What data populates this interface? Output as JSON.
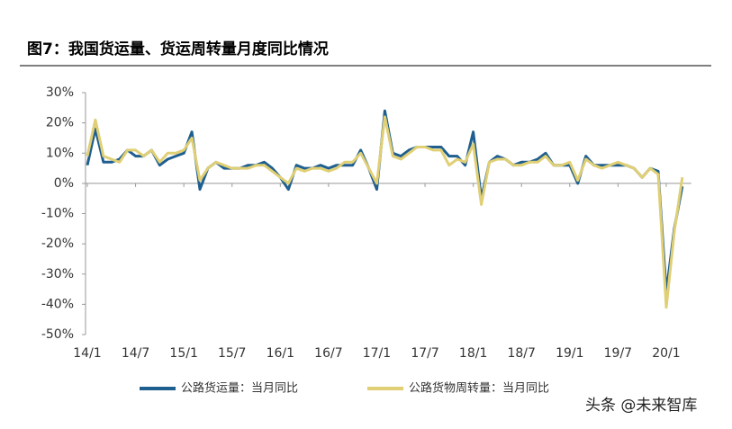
{
  "chart_data": {
    "type": "line",
    "title": "图7：我国货运量、货运周转量月度同比情况",
    "watermark": "头条 @未来智库",
    "categories": [
      "14/1",
      null,
      null,
      null,
      null,
      null,
      "14/7",
      null,
      null,
      null,
      null,
      null,
      "15/1",
      null,
      null,
      null,
      null,
      null,
      "15/7",
      null,
      null,
      null,
      null,
      null,
      "16/1",
      null,
      null,
      null,
      null,
      null,
      "16/7",
      null,
      null,
      null,
      null,
      null,
      "17/1",
      null,
      null,
      null,
      null,
      null,
      "17/7",
      null,
      null,
      null,
      null,
      null,
      "18/1",
      null,
      null,
      null,
      null,
      null,
      "18/7",
      null,
      null,
      null,
      null,
      null,
      "19/1",
      null,
      null,
      null,
      null,
      null,
      "19/7",
      null,
      null,
      null,
      null,
      null,
      "20/1",
      null,
      null
    ],
    "series": [
      {
        "name": "公路货运量：当月同比",
        "color": "#1f5f8f",
        "values": [
          6,
          18,
          7,
          7,
          8,
          11,
          9,
          9,
          11,
          6,
          8,
          9,
          10,
          17,
          -2,
          5,
          7,
          5,
          5,
          5,
          6,
          6,
          7,
          5,
          2,
          -2,
          6,
          5,
          5,
          6,
          5,
          6,
          6,
          6,
          11,
          5,
          -2,
          24,
          10,
          9,
          11,
          12,
          12,
          12,
          12,
          9,
          9,
          6,
          17,
          -5,
          7,
          9,
          8,
          6,
          7,
          7,
          8,
          10,
          6,
          6,
          6,
          0,
          9,
          6,
          6,
          6,
          6,
          6,
          5,
          2,
          5,
          4,
          -36,
          -15,
          -1
        ]
      },
      {
        "name": "公路货物周转量：当月同比",
        "color": "#e0cf74",
        "values": [
          9,
          21,
          9,
          8,
          7,
          11,
          11,
          9,
          11,
          7,
          10,
          10,
          11,
          15,
          1,
          5,
          7,
          6,
          5,
          5,
          5,
          6,
          6,
          4,
          2,
          0,
          5,
          4,
          5,
          5,
          4,
          5,
          7,
          7,
          10,
          5,
          0,
          22,
          9,
          8,
          10,
          12,
          12,
          11,
          11,
          6,
          8,
          7,
          13,
          -7,
          7,
          8,
          8,
          6,
          6,
          7,
          7,
          9,
          6,
          6,
          7,
          1,
          8,
          6,
          5,
          6,
          7,
          6,
          5,
          2,
          5,
          3,
          -41,
          -16,
          2
        ]
      }
    ],
    "ylim": [
      -50,
      30
    ],
    "yticks": [
      {
        "value": -50,
        "label": "-50%"
      },
      {
        "value": -40,
        "label": "-40%"
      },
      {
        "value": -30,
        "label": "-30%"
      },
      {
        "value": -20,
        "label": "-20%"
      },
      {
        "value": -10,
        "label": "-10%"
      },
      {
        "value": 0,
        "label": "0%"
      },
      {
        "value": 10,
        "label": "10%"
      },
      {
        "value": 20,
        "label": "20%"
      },
      {
        "value": 30,
        "label": "30%"
      }
    ]
  }
}
